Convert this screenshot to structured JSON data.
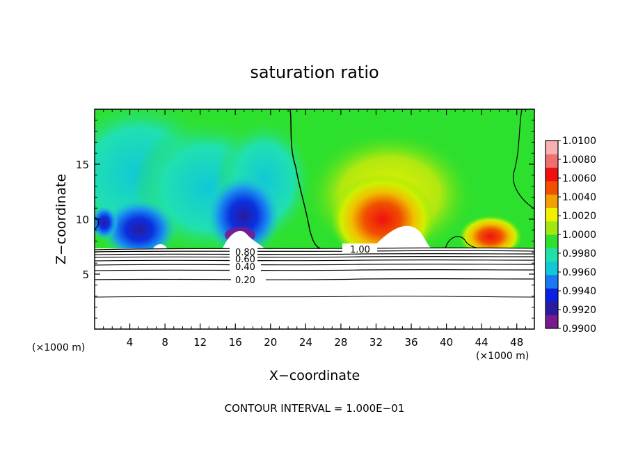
{
  "chart_data": {
    "type": "heatmap",
    "title": "saturation ratio",
    "xlabel": "X−coordinate",
    "ylabel": "Z−coordinate",
    "x_unit_left": "(×1000 m)",
    "x_unit_right": "(×1000 m)",
    "xlim": [
      0,
      50
    ],
    "ylim": [
      0,
      20
    ],
    "x_ticks": [
      4,
      8,
      12,
      16,
      20,
      24,
      28,
      32,
      36,
      40,
      44,
      48
    ],
    "y_ticks": [
      5,
      10,
      15
    ],
    "colorbar": {
      "levels": [
        "1.0100",
        "1.0080",
        "1.0060",
        "1.0040",
        "1.0020",
        "1.0000",
        "0.9980",
        "0.9960",
        "0.9940",
        "0.9920",
        "0.9900"
      ],
      "min": 0.99,
      "max": 1.01,
      "colors": [
        "#7a1a8c",
        "#2a1aa0",
        "#0a20e0",
        "#1a78f0",
        "#10c8d8",
        "#20e0a8",
        "#30e030",
        "#a0e810",
        "#f0f000",
        "#f0a000",
        "#f05000",
        "#f01010",
        "#f07070",
        "#f8b0b0"
      ]
    },
    "contour_labels": [
      "0.80",
      "0.60",
      "0.40",
      "0.20",
      "1.00"
    ],
    "footer": "CONTOUR INTERVAL = 1.000E−01"
  }
}
